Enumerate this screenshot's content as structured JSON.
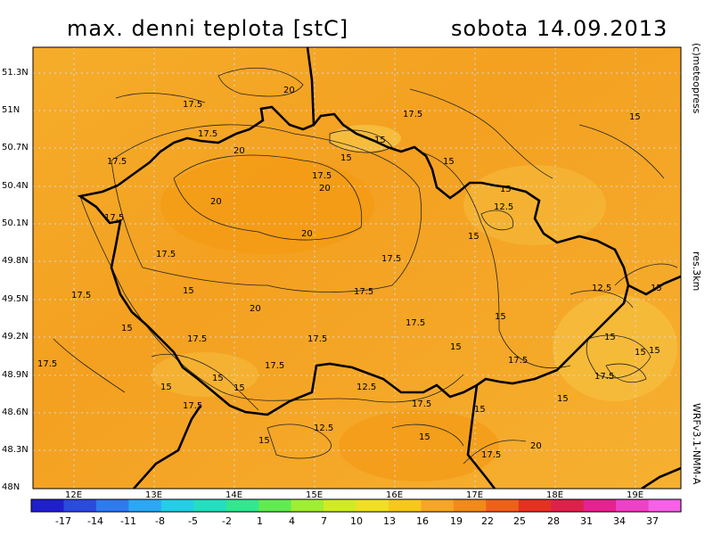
{
  "header": {
    "title": "max. denni teplota [stC]",
    "date": "sobota 14.09.2013"
  },
  "side_labels": {
    "credit": "(c)meteopress",
    "resolution": "res.3km",
    "model": "WRFv3.1-NMM-A"
  },
  "map": {
    "variable": "max. denni teplota",
    "unit": "stC",
    "base_color": "#f5a623",
    "warm_color": "#f39a10",
    "cool_color": "#f7c040",
    "lat_labels": [
      "51.3N",
      "51N",
      "50.7N",
      "50.4N",
      "50.1N",
      "49.8N",
      "49.5N",
      "49.2N",
      "48.9N",
      "48.6N",
      "48.3N",
      "48N"
    ],
    "lon_labels": [
      "12E",
      "13E",
      "14E",
      "15E",
      "16E",
      "17E",
      "18E",
      "19E"
    ],
    "contour_labels": [
      "20",
      "17.5",
      "20",
      "17.5",
      "15",
      "15",
      "17.5",
      "20",
      "17.5",
      "15",
      "15",
      "20",
      "17.5",
      "15",
      "12.5",
      "17.5",
      "15",
      "17.5",
      "15",
      "20",
      "17.5",
      "17.5",
      "17.5",
      "17.5",
      "15",
      "17.5",
      "15",
      "17.5",
      "17.5",
      "17.5",
      "15",
      "12.5",
      "15",
      "17.5",
      "15",
      "15",
      "15",
      "15",
      "12.5",
      "15",
      "15",
      "17.5",
      "12.5",
      "17.5",
      "15",
      "20",
      "17.5",
      "15",
      "15",
      "20",
      "15",
      "17.5"
    ]
  },
  "colorbar": {
    "ticks": [
      "-17",
      "-14",
      "-11",
      "-8",
      "-5",
      "-2",
      "1",
      "4",
      "7",
      "10",
      "13",
      "16",
      "19",
      "22",
      "25",
      "28",
      "31",
      "34",
      "37"
    ],
    "colors": [
      "#1f1fd0",
      "#2a4ae0",
      "#2f7af0",
      "#2aa8f5",
      "#22cfe8",
      "#20e0c0",
      "#30e890",
      "#60ec50",
      "#a0ee30",
      "#d0ec20",
      "#f0e020",
      "#f8c818",
      "#f5a623",
      "#f28a18",
      "#f06018",
      "#e83020",
      "#e0204a",
      "#e82090",
      "#f040c8",
      "#f860e8"
    ]
  }
}
